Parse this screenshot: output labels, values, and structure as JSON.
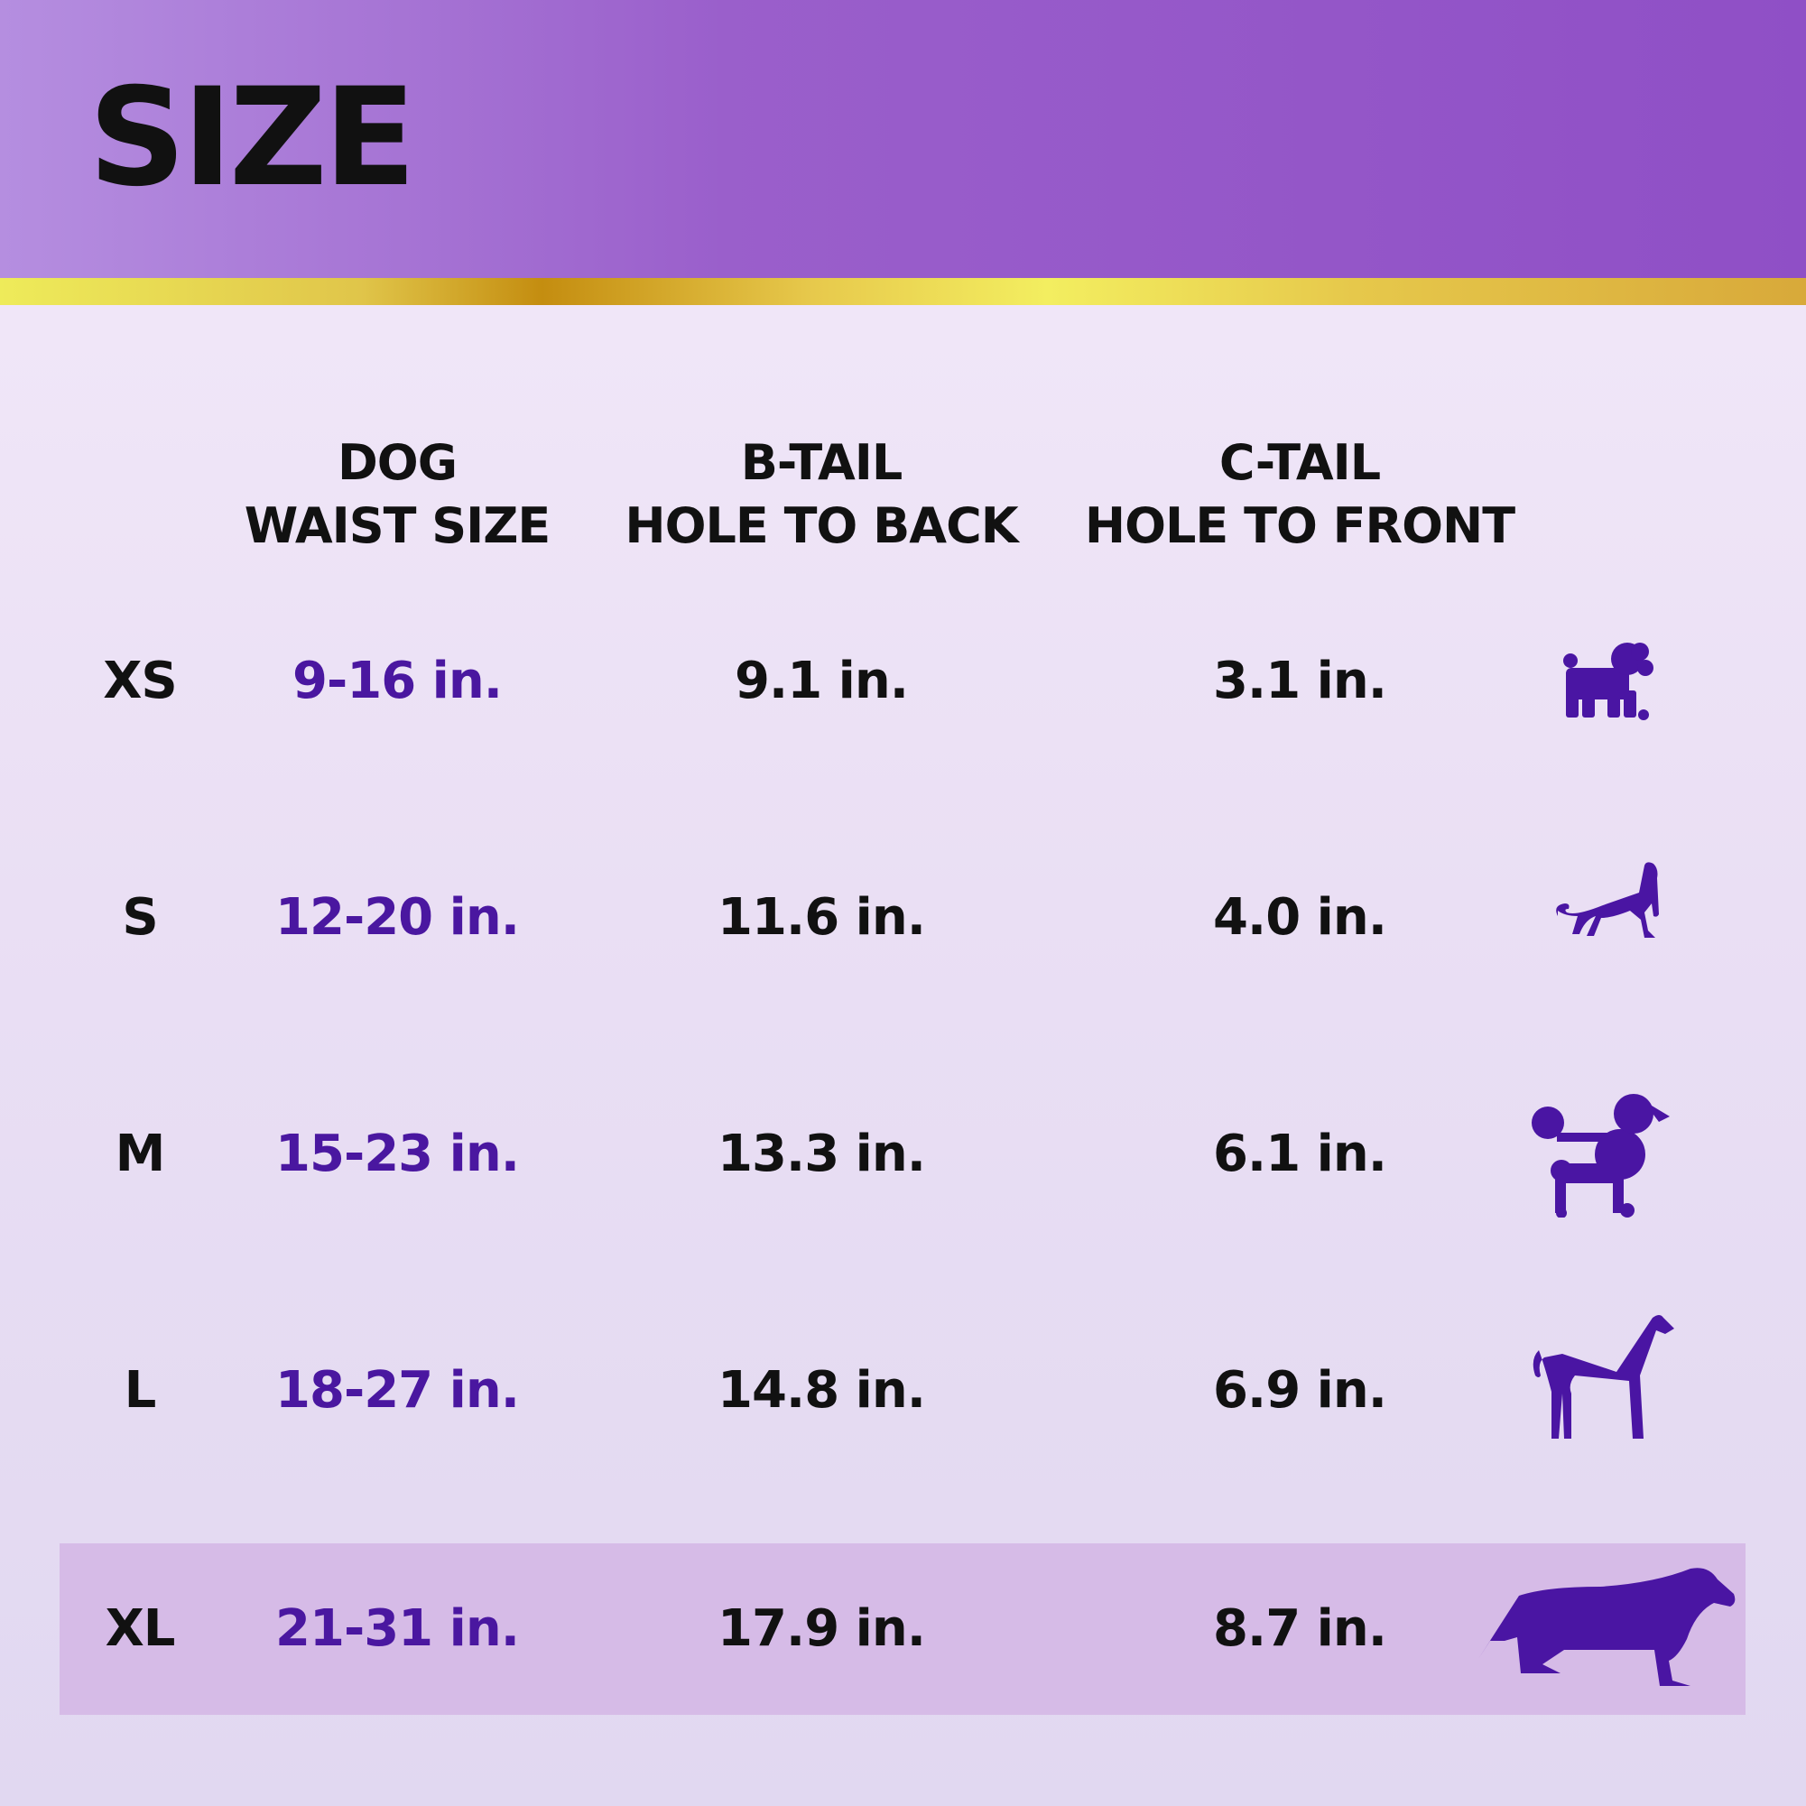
{
  "header": {
    "title": "SIZE"
  },
  "columns": {
    "waist": [
      "DOG",
      "WAIST SIZE"
    ],
    "btail": [
      "B-TAIL",
      "HOLE TO BACK"
    ],
    "ctail": [
      "C-TAIL",
      "HOLE TO FRONT"
    ]
  },
  "rows": [
    {
      "size": "XS",
      "waist": "9-16 in.",
      "btail": "9.1 in.",
      "ctail": "3.1 in.",
      "icon": "toy-dog-icon"
    },
    {
      "size": "S",
      "waist": "12-20 in.",
      "btail": "11.6 in.",
      "ctail": "4.0 in.",
      "icon": "small-dog-icon"
    },
    {
      "size": "M",
      "waist": "15-23 in.",
      "btail": "13.3 in.",
      "ctail": "6.1 in.",
      "icon": "poodle-icon"
    },
    {
      "size": "L",
      "waist": "18-27 in.",
      "btail": "14.8 in.",
      "ctail": "6.9 in.",
      "icon": "large-dog-icon"
    },
    {
      "size": "XL",
      "waist": "21-31 in.",
      "btail": "17.9 in.",
      "ctail": "8.7 in.",
      "icon": "extra-large-dog-icon"
    }
  ],
  "colors": {
    "header_purple": "#9a5fcb",
    "gold": "#e0c54a",
    "waist_text": "#4a17a0",
    "icon": "#4a15a3",
    "highlight_row": "#d6bbe7"
  }
}
